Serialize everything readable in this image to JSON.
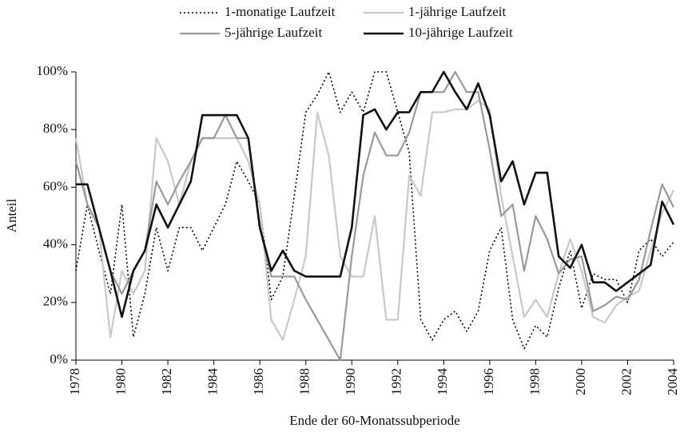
{
  "chart_data": {
    "type": "line",
    "x_label": "Ende der 60-Monatssubperiode",
    "y_label": "Anteil",
    "x": [
      1978,
      1978.5,
      1979,
      1979.5,
      1980,
      1980.5,
      1981,
      1981.5,
      1982,
      1982.5,
      1983,
      1983.5,
      1984,
      1984.5,
      1985,
      1985.5,
      1986,
      1986.5,
      1987,
      1987.5,
      1988,
      1988.5,
      1989,
      1989.5,
      1990,
      1990.5,
      1991,
      1991.5,
      1992,
      1992.5,
      1993,
      1993.5,
      1994,
      1994.5,
      1995,
      1995.5,
      1996,
      1996.5,
      1997,
      1997.5,
      1998,
      1998.5,
      1999,
      1999.5,
      2000,
      2000.5,
      2001,
      2001.5,
      2002,
      2002.5,
      2003,
      2003.5,
      2004
    ],
    "series": [
      {
        "name": "1-monatige Laufzeit",
        "color": "#000000",
        "style": "dotted",
        "values": [
          31,
          54,
          38,
          23,
          54,
          8,
          23,
          46,
          31,
          46,
          46,
          38,
          46,
          54,
          69,
          62,
          54,
          21,
          29,
          57,
          86,
          92,
          100,
          86,
          93,
          86,
          100,
          100,
          86,
          72,
          14,
          7,
          14,
          17,
          10,
          17,
          38,
          46,
          14,
          4,
          12,
          8,
          25,
          38,
          18,
          30,
          28,
          28,
          20,
          38,
          42,
          36,
          41
        ]
      },
      {
        "name": "1-jährige Laufzeit",
        "color": "#c8c8c8",
        "style": "solid",
        "values": [
          77,
          54,
          46,
          8,
          31,
          23,
          31,
          77,
          69,
          54,
          69,
          77,
          77,
          77,
          77,
          69,
          54,
          14,
          7,
          21,
          36,
          86,
          71,
          36,
          29,
          29,
          50,
          14,
          14,
          64,
          57,
          86,
          86,
          87,
          87,
          90,
          87,
          57,
          36,
          15,
          21,
          15,
          30,
          42,
          31,
          15,
          13,
          19,
          22,
          24,
          38,
          51,
          59
        ]
      },
      {
        "name": "5-jährige Laufzeit",
        "color": "#999999",
        "style": "solid",
        "values": [
          69,
          54,
          46,
          31,
          23,
          31,
          38,
          62,
          54,
          62,
          69,
          77,
          77,
          85,
          77,
          77,
          46,
          29,
          29,
          29,
          21,
          14,
          7,
          0,
          36,
          64,
          79,
          71,
          71,
          79,
          93,
          93,
          93,
          100,
          93,
          93,
          73,
          50,
          54,
          31,
          50,
          42,
          30,
          35,
          36,
          17,
          19,
          22,
          21,
          28,
          45,
          61,
          53
        ]
      },
      {
        "name": "10-jährige Laufzeit",
        "color": "#111111",
        "style": "thick",
        "values": [
          61,
          61,
          46,
          31,
          15,
          31,
          38,
          54,
          46,
          54,
          62,
          85,
          85,
          85,
          85,
          77,
          46,
          31,
          38,
          31,
          29,
          29,
          29,
          29,
          46,
          85,
          87,
          80,
          86,
          86,
          93,
          93,
          100,
          93,
          87,
          96,
          85,
          62,
          69,
          54,
          65,
          65,
          36,
          32,
          40,
          27,
          27,
          24,
          27,
          30,
          33,
          55,
          47
        ]
      }
    ],
    "xlim": [
      1978,
      2004
    ],
    "xticks": [
      1978,
      1980,
      1982,
      1984,
      1986,
      1988,
      1990,
      1992,
      1994,
      1996,
      1998,
      2000,
      2002,
      2004
    ],
    "ylim": [
      0,
      100
    ],
    "yticks": [
      {
        "value": 0,
        "label": "0%"
      },
      {
        "value": 20,
        "label": "20%"
      },
      {
        "value": 40,
        "label": "40%"
      },
      {
        "value": 60,
        "label": "60%"
      },
      {
        "value": 80,
        "label": "80%"
      },
      {
        "value": 100,
        "label": "100%"
      }
    ],
    "grid": false,
    "legend": "top"
  }
}
